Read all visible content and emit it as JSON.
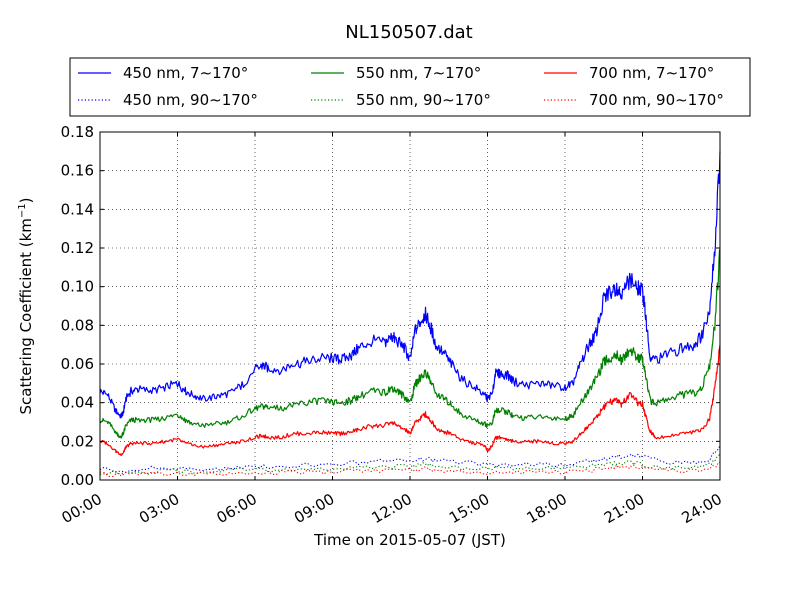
{
  "chart_data": {
    "type": "line",
    "title": "NL150507.dat",
    "xlabel": "Time on 2015-05-07 (JST)",
    "ylabel": "Scattering Coefficient (km",
    "ylabel_sup": "−1",
    "ylabel_close": ")",
    "xlim": [
      0,
      24
    ],
    "ylim": [
      0,
      0.18
    ],
    "x_ticks": [
      0,
      3,
      6,
      9,
      12,
      15,
      18,
      21,
      24
    ],
    "x_tick_labels": [
      "00:00",
      "03:00",
      "06:00",
      "09:00",
      "12:00",
      "15:00",
      "18:00",
      "21:00",
      "24:00"
    ],
    "y_ticks": [
      0,
      0.02,
      0.04,
      0.06,
      0.08,
      0.1,
      0.12,
      0.14,
      0.16,
      0.18
    ],
    "y_tick_labels": [
      "0.00",
      "0.02",
      "0.04",
      "0.06",
      "0.08",
      "0.10",
      "0.12",
      "0.14",
      "0.16",
      "0.18"
    ],
    "grid": true,
    "legend_position": "top",
    "x_unit": "hours",
    "series": [
      {
        "name": "450 nm, 7∼170°",
        "color": "#0000ff",
        "style": "solid",
        "x": [
          0.0,
          0.3,
          0.6,
          0.8,
          0.9,
          1.0,
          1.2,
          1.5,
          2.0,
          2.5,
          3.0,
          3.3,
          3.6,
          4.0,
          4.5,
          5.0,
          5.5,
          6.0,
          6.3,
          6.5,
          7.0,
          7.5,
          8.0,
          8.5,
          9.0,
          9.3,
          9.7,
          10.0,
          10.5,
          11.0,
          11.3,
          11.5,
          11.8,
          12.0,
          12.2,
          12.4,
          12.6,
          12.8,
          13.0,
          13.3,
          13.6,
          14.0,
          14.5,
          14.9,
          15.0,
          15.2,
          15.3,
          15.5,
          15.8,
          16.0,
          16.5,
          17.0,
          17.5,
          18.0,
          18.3,
          18.6,
          18.9,
          19.2,
          19.5,
          19.7,
          20.0,
          20.2,
          20.5,
          20.8,
          21.0,
          21.1,
          21.3,
          21.5,
          22.0,
          22.5,
          23.0,
          23.3,
          23.6,
          23.8,
          24.0
        ],
        "y": [
          0.046,
          0.044,
          0.036,
          0.033,
          0.035,
          0.042,
          0.046,
          0.047,
          0.046,
          0.048,
          0.05,
          0.046,
          0.044,
          0.042,
          0.043,
          0.045,
          0.049,
          0.057,
          0.059,
          0.058,
          0.057,
          0.06,
          0.061,
          0.063,
          0.063,
          0.062,
          0.064,
          0.068,
          0.072,
          0.071,
          0.074,
          0.072,
          0.068,
          0.062,
          0.077,
          0.082,
          0.086,
          0.079,
          0.07,
          0.066,
          0.06,
          0.052,
          0.048,
          0.044,
          0.042,
          0.045,
          0.055,
          0.055,
          0.054,
          0.051,
          0.049,
          0.05,
          0.049,
          0.048,
          0.05,
          0.06,
          0.069,
          0.076,
          0.093,
          0.097,
          0.1,
          0.095,
          0.104,
          0.1,
          0.097,
          0.088,
          0.063,
          0.062,
          0.065,
          0.068,
          0.07,
          0.075,
          0.09,
          0.12,
          0.17
        ]
      },
      {
        "name": "550 nm, 7∼170°",
        "color": "#008000",
        "style": "solid",
        "x": [
          0.0,
          0.3,
          0.6,
          0.8,
          0.9,
          1.0,
          1.2,
          1.5,
          2.0,
          2.5,
          3.0,
          3.3,
          3.6,
          4.0,
          4.5,
          5.0,
          5.5,
          6.0,
          6.3,
          6.5,
          7.0,
          7.5,
          8.0,
          8.5,
          9.0,
          9.3,
          9.7,
          10.0,
          10.5,
          11.0,
          11.3,
          11.5,
          11.8,
          12.0,
          12.2,
          12.4,
          12.6,
          12.8,
          13.0,
          13.3,
          13.6,
          14.0,
          14.5,
          14.9,
          15.0,
          15.2,
          15.3,
          15.5,
          15.8,
          16.0,
          16.5,
          17.0,
          17.5,
          18.0,
          18.3,
          18.6,
          18.9,
          19.2,
          19.5,
          19.7,
          20.0,
          20.2,
          20.5,
          20.8,
          21.0,
          21.1,
          21.3,
          21.5,
          22.0,
          22.5,
          23.0,
          23.3,
          23.6,
          23.8,
          24.0
        ],
        "y": [
          0.031,
          0.03,
          0.025,
          0.022,
          0.024,
          0.028,
          0.031,
          0.031,
          0.031,
          0.032,
          0.034,
          0.031,
          0.029,
          0.028,
          0.029,
          0.03,
          0.033,
          0.037,
          0.038,
          0.038,
          0.037,
          0.039,
          0.04,
          0.041,
          0.04,
          0.04,
          0.041,
          0.043,
          0.046,
          0.045,
          0.048,
          0.046,
          0.043,
          0.04,
          0.049,
          0.053,
          0.056,
          0.051,
          0.045,
          0.042,
          0.039,
          0.034,
          0.031,
          0.029,
          0.028,
          0.03,
          0.036,
          0.036,
          0.035,
          0.033,
          0.032,
          0.033,
          0.032,
          0.032,
          0.033,
          0.04,
          0.046,
          0.052,
          0.061,
          0.063,
          0.065,
          0.062,
          0.067,
          0.064,
          0.062,
          0.056,
          0.041,
          0.04,
          0.042,
          0.044,
          0.045,
          0.048,
          0.058,
          0.08,
          0.118
        ]
      },
      {
        "name": "700 nm, 7∼170°",
        "color": "#ff0000",
        "style": "solid",
        "x": [
          0.0,
          0.3,
          0.6,
          0.8,
          0.9,
          1.0,
          1.2,
          1.5,
          2.0,
          2.5,
          3.0,
          3.3,
          3.6,
          4.0,
          4.5,
          5.0,
          5.5,
          6.0,
          6.3,
          6.5,
          7.0,
          7.5,
          8.0,
          8.5,
          9.0,
          9.3,
          9.7,
          10.0,
          10.5,
          11.0,
          11.3,
          11.5,
          11.8,
          12.0,
          12.2,
          12.4,
          12.6,
          12.8,
          13.0,
          13.3,
          13.6,
          14.0,
          14.5,
          14.9,
          15.0,
          15.2,
          15.3,
          15.5,
          15.8,
          16.0,
          16.5,
          17.0,
          17.5,
          18.0,
          18.3,
          18.6,
          18.9,
          19.2,
          19.5,
          19.7,
          20.0,
          20.2,
          20.5,
          20.8,
          21.0,
          21.1,
          21.3,
          21.5,
          22.0,
          22.5,
          23.0,
          23.3,
          23.6,
          23.8,
          24.0
        ],
        "y": [
          0.02,
          0.019,
          0.015,
          0.013,
          0.014,
          0.017,
          0.019,
          0.019,
          0.019,
          0.02,
          0.021,
          0.019,
          0.018,
          0.017,
          0.018,
          0.019,
          0.02,
          0.022,
          0.023,
          0.022,
          0.022,
          0.024,
          0.024,
          0.025,
          0.024,
          0.024,
          0.025,
          0.026,
          0.028,
          0.028,
          0.03,
          0.028,
          0.026,
          0.024,
          0.03,
          0.032,
          0.034,
          0.031,
          0.027,
          0.025,
          0.024,
          0.021,
          0.019,
          0.018,
          0.015,
          0.018,
          0.022,
          0.022,
          0.021,
          0.02,
          0.02,
          0.02,
          0.019,
          0.019,
          0.02,
          0.024,
          0.028,
          0.032,
          0.038,
          0.04,
          0.041,
          0.039,
          0.044,
          0.04,
          0.039,
          0.034,
          0.025,
          0.022,
          0.023,
          0.024,
          0.025,
          0.026,
          0.032,
          0.048,
          0.07
        ]
      },
      {
        "name": "450 nm, 90∼170°",
        "color": "#0000ff",
        "style": "dotted",
        "x": [
          0,
          1,
          2,
          3,
          4,
          5,
          6,
          7,
          8,
          9,
          10,
          11,
          12,
          12.6,
          13,
          14,
          15,
          16,
          17,
          18,
          19,
          19.5,
          20,
          20.5,
          21,
          22,
          23,
          23.6,
          24
        ],
        "y": [
          0.006,
          0.005,
          0.006,
          0.006,
          0.006,
          0.006,
          0.007,
          0.007,
          0.008,
          0.008,
          0.009,
          0.01,
          0.01,
          0.011,
          0.01,
          0.009,
          0.008,
          0.008,
          0.008,
          0.008,
          0.01,
          0.011,
          0.012,
          0.013,
          0.012,
          0.009,
          0.009,
          0.011,
          0.018
        ]
      },
      {
        "name": "550 nm, 90∼170°",
        "color": "#008000",
        "style": "dotted",
        "x": [
          0,
          1,
          2,
          3,
          4,
          5,
          6,
          7,
          8,
          9,
          10,
          11,
          12,
          12.6,
          13,
          14,
          15,
          16,
          17,
          18,
          19,
          19.5,
          20,
          20.5,
          21,
          22,
          23,
          23.6,
          24
        ],
        "y": [
          0.004,
          0.004,
          0.004,
          0.005,
          0.004,
          0.005,
          0.005,
          0.005,
          0.006,
          0.006,
          0.007,
          0.007,
          0.007,
          0.008,
          0.007,
          0.006,
          0.006,
          0.006,
          0.006,
          0.006,
          0.007,
          0.008,
          0.009,
          0.009,
          0.008,
          0.006,
          0.007,
          0.008,
          0.013
        ]
      },
      {
        "name": "700 nm, 90∼170°",
        "color": "#ff0000",
        "style": "dotted",
        "x": [
          0,
          1,
          2,
          3,
          4,
          5,
          6,
          7,
          8,
          9,
          10,
          11,
          12,
          12.6,
          13,
          14,
          15,
          16,
          17,
          18,
          19,
          19.5,
          20,
          20.5,
          21,
          22,
          23,
          23.6,
          24
        ],
        "y": [
          0.003,
          0.003,
          0.003,
          0.003,
          0.003,
          0.003,
          0.004,
          0.004,
          0.004,
          0.004,
          0.005,
          0.005,
          0.005,
          0.006,
          0.005,
          0.005,
          0.004,
          0.004,
          0.004,
          0.004,
          0.005,
          0.006,
          0.007,
          0.007,
          0.006,
          0.005,
          0.005,
          0.006,
          0.009
        ]
      }
    ]
  }
}
